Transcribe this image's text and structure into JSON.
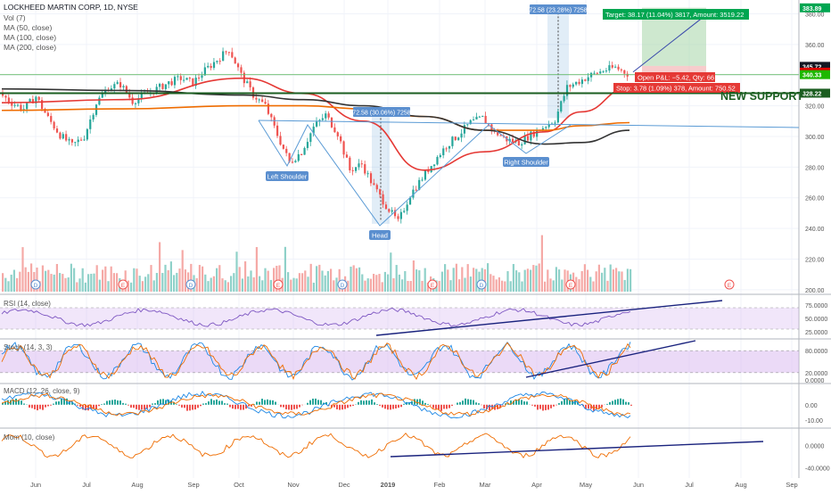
{
  "header": {
    "title": "LOCKHEED MARTIN CORP, 1D, NYSE",
    "indicators": [
      "Vol (7)",
      "MA (50, close)",
      "MA (100, close)",
      "MA (200, close)"
    ]
  },
  "panes": {
    "rsi_title": "RSI (14, close)",
    "stoch_title": "Stoch (14, 3, 3)",
    "macd_title": "MACD (12, 26, close, 9)",
    "mom_title": "Mom (10, close)"
  },
  "annotations": {
    "new_support": "NEW SUPPORT",
    "left_shoulder": "Left Shoulder",
    "head": "Head",
    "right_shoulder": "Right Shoulder",
    "measure_low": "72.58 (30.06%) 7258",
    "measure_high": "72.58 (23.28%) 7258",
    "target": "Target: 38.17 (11.04%) 3817, Amount: 3519.22",
    "open_pl": "Open P&L: −5.42, Qty: 66",
    "stop": "Stop: 3.78 (1.09%) 378, Amount: 750.52",
    "event_d": "D",
    "event_e": "E"
  },
  "price_badges": [
    {
      "label": "383.89",
      "value": 383.89,
      "color": "#00a651"
    },
    {
      "label": "345.72",
      "value": 345.72,
      "color": "#131722"
    },
    {
      "label": "341.94",
      "value": 341.94,
      "color": "#e00000"
    },
    {
      "label": "340.33",
      "value": 340.33,
      "color": "#1fb800"
    },
    {
      "label": "328.22",
      "value": 328.22,
      "color": "#1b5e20"
    }
  ],
  "colors": {
    "up": "#26a69a",
    "down": "#ef5350",
    "ma50": "#e53935",
    "ma100": "#ef6c00",
    "ma200": "#333333",
    "trend": "#1a237e",
    "pattern": "#5b9bd5",
    "label_bg": "#5b8fcf",
    "osc_fill": "#d8b6f0",
    "rsi_line": "#7e57c2"
  },
  "chart_data": {
    "type": "line",
    "title": "LOCKHEED MARTIN CORP, 1D, NYSE",
    "xlabel": "",
    "ylabel": "",
    "x_ticks": [
      "Jun",
      "Jul",
      "Aug",
      "Sep",
      "Oct",
      "Nov",
      "Dec",
      "2019",
      "Feb",
      "Mar",
      "Apr",
      "May",
      "Jun",
      "Jul",
      "Aug",
      "Sep"
    ],
    "price_axis_ticks": [
      "380.00",
      "360.00",
      "340.00",
      "320.00",
      "300.00",
      "280.00",
      "260.00",
      "240.00",
      "220.00",
      "200.00"
    ],
    "ylim": [
      197,
      389
    ],
    "grid": true,
    "price_close_weekly": [
      328,
      322,
      318,
      326,
      312,
      301,
      294,
      300,
      322,
      332,
      334,
      323,
      327,
      331,
      335,
      338,
      335,
      343,
      350,
      357,
      340,
      327,
      320,
      301,
      283,
      290,
      306,
      314,
      302,
      278,
      282,
      267,
      255,
      244,
      262,
      273,
      284,
      294,
      301,
      309,
      312,
      303,
      298,
      296,
      301,
      306,
      311,
      332,
      336,
      340,
      343,
      345,
      341
    ],
    "ma_series": [
      {
        "name": "MA (50, close)",
        "x_index": [
          0,
          10,
          20,
          25,
          30,
          35,
          40,
          45,
          48,
          52
        ],
        "values": [
          322,
          324,
          338,
          328,
          310,
          278,
          290,
          303,
          316,
          332
        ]
      },
      {
        "name": "MA (100, close)",
        "x_index": [
          0,
          10,
          20,
          25,
          30,
          35,
          40,
          45,
          48,
          52
        ],
        "values": [
          317,
          318,
          320,
          320,
          318,
          313,
          304,
          304,
          307,
          309
        ]
      },
      {
        "name": "MA (200, close)",
        "x_index": [
          0,
          10,
          20,
          25,
          30,
          35,
          40,
          45,
          48,
          52
        ],
        "values": [
          331,
          330,
          327,
          324,
          320,
          313,
          304,
          295,
          296,
          304
        ]
      }
    ],
    "rsi_ticks": [
      "75.0000",
      "50.0000",
      "25.0000"
    ],
    "stoch_ticks": [
      "80.0000",
      "20.0000",
      "0.0000"
    ],
    "macd_ticks": [
      "0.00",
      "-10.00"
    ],
    "mom_ticks": [
      "0.0000",
      "-40.0000"
    ]
  }
}
